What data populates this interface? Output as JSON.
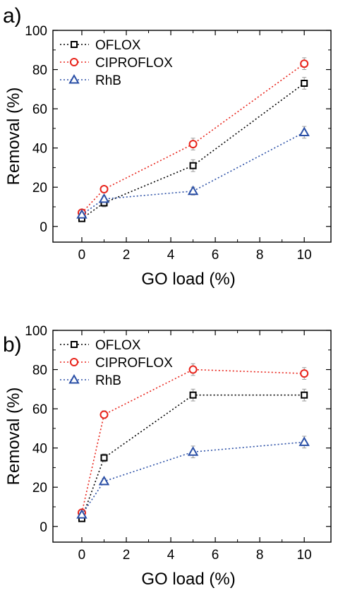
{
  "chart_data": [
    {
      "type": "line",
      "panel_label": "a)",
      "xlabel": "GO load (%)",
      "ylabel": "Removal (%)",
      "xlim": [
        -1.3,
        11.2
      ],
      "ylim": [
        -8,
        100
      ],
      "xticks": [
        0,
        2,
        4,
        6,
        8,
        10
      ],
      "yticks": [
        0,
        20,
        40,
        60,
        80,
        100
      ],
      "grid": false,
      "legend_position": "top-left",
      "x": [
        0,
        1,
        5,
        10
      ],
      "series": [
        {
          "name": "OFLOX",
          "marker": "square",
          "color": "#000000",
          "values": [
            4,
            12,
            31,
            73
          ],
          "errors": [
            1.5,
            2,
            3,
            3
          ]
        },
        {
          "name": "CIPROFLOX",
          "marker": "circle",
          "color": "#e8231a",
          "values": [
            7,
            19,
            42,
            83
          ],
          "errors": [
            1,
            1.5,
            3,
            3
          ]
        },
        {
          "name": "RhB",
          "marker": "triangle",
          "color": "#2a4fa6",
          "values": [
            6,
            14,
            18,
            48
          ],
          "errors": [
            1,
            1.5,
            2,
            3
          ]
        }
      ]
    },
    {
      "type": "line",
      "panel_label": "b)",
      "xlabel": "GO load (%)",
      "ylabel": "Removal (%)",
      "xlim": [
        -1.3,
        11.2
      ],
      "ylim": [
        -8,
        100
      ],
      "xticks": [
        0,
        2,
        4,
        6,
        8,
        10
      ],
      "yticks": [
        0,
        20,
        40,
        60,
        80,
        100
      ],
      "grid": false,
      "legend_position": "top-left",
      "x": [
        0,
        1,
        5,
        10
      ],
      "series": [
        {
          "name": "OFLOX",
          "marker": "square",
          "color": "#000000",
          "values": [
            4,
            35,
            67,
            67
          ],
          "errors": [
            1.5,
            2,
            3,
            3
          ]
        },
        {
          "name": "CIPROFLOX",
          "marker": "circle",
          "color": "#e8231a",
          "values": [
            7,
            57,
            80,
            78
          ],
          "errors": [
            1,
            2,
            3,
            3
          ]
        },
        {
          "name": "RhB",
          "marker": "triangle",
          "color": "#2a4fa6",
          "values": [
            6,
            23,
            38,
            43
          ],
          "errors": [
            1,
            1.5,
            3,
            3
          ]
        }
      ]
    }
  ]
}
